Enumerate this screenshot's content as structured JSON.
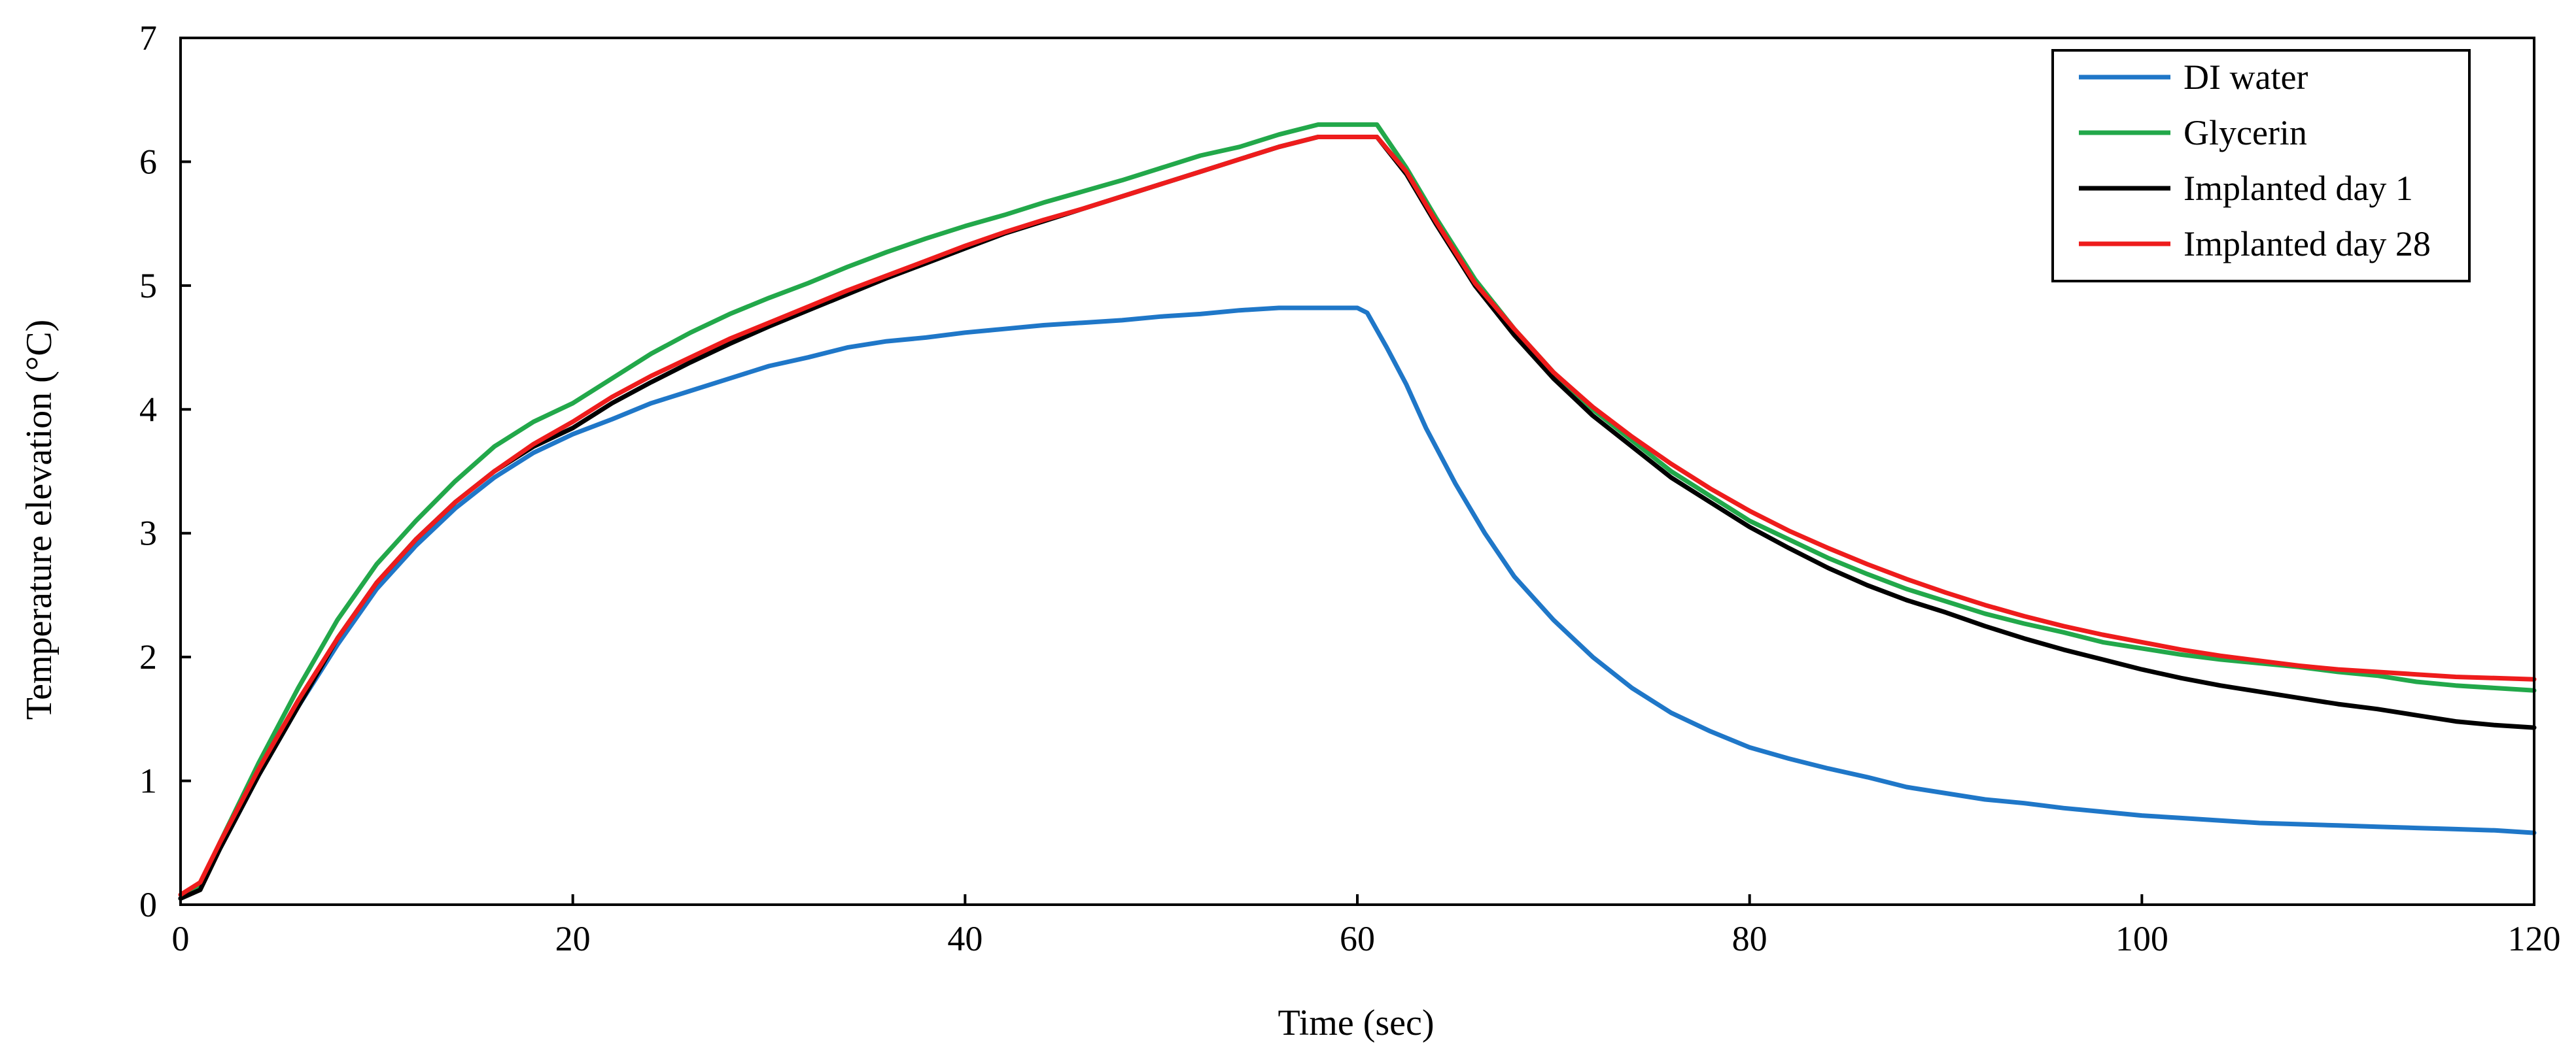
{
  "chart_data": {
    "type": "line",
    "title": "",
    "xlabel": "Time (sec)",
    "ylabel": "Temperature elevation (°C)",
    "xlim": [
      0,
      120
    ],
    "ylim": [
      0,
      7
    ],
    "xticks": [
      0,
      20,
      40,
      60,
      80,
      100,
      120
    ],
    "yticks": [
      0,
      1,
      2,
      3,
      4,
      5,
      6,
      7
    ],
    "grid": false,
    "legend_position": "top-right",
    "series": [
      {
        "name": "DI water",
        "color": "#1f77c8",
        "x": [
          0,
          1,
          2,
          4,
          6,
          8,
          10,
          12,
          14,
          16,
          18,
          20,
          22,
          24,
          26,
          28,
          30,
          32,
          34,
          36,
          38,
          40,
          42,
          44,
          46,
          48,
          50,
          52,
          54,
          56,
          58,
          60,
          60.5,
          61.5,
          62.5,
          63.5,
          65,
          66.5,
          68,
          70,
          72,
          74,
          76,
          78,
          80,
          82,
          84,
          86,
          88,
          90,
          92,
          94,
          96,
          98,
          100,
          102,
          104,
          106,
          108,
          110,
          112,
          114,
          116,
          118,
          120
        ],
        "y": [
          0.05,
          0.15,
          0.45,
          1.05,
          1.6,
          2.1,
          2.55,
          2.9,
          3.2,
          3.45,
          3.65,
          3.8,
          3.92,
          4.05,
          4.15,
          4.25,
          4.35,
          4.42,
          4.5,
          4.55,
          4.58,
          4.62,
          4.65,
          4.68,
          4.7,
          4.72,
          4.75,
          4.77,
          4.8,
          4.82,
          4.82,
          4.82,
          4.78,
          4.5,
          4.2,
          3.85,
          3.4,
          3.0,
          2.65,
          2.3,
          2.0,
          1.75,
          1.55,
          1.4,
          1.27,
          1.18,
          1.1,
          1.03,
          0.95,
          0.9,
          0.85,
          0.82,
          0.78,
          0.75,
          0.72,
          0.7,
          0.68,
          0.66,
          0.65,
          0.64,
          0.63,
          0.62,
          0.61,
          0.6,
          0.58
        ]
      },
      {
        "name": "Glycerin",
        "color": "#22a84a",
        "x": [
          0,
          1,
          2,
          4,
          6,
          8,
          10,
          12,
          14,
          16,
          18,
          20,
          22,
          24,
          26,
          28,
          30,
          32,
          34,
          36,
          38,
          40,
          42,
          44,
          46,
          48,
          50,
          52,
          54,
          56,
          58,
          60,
          61,
          62.5,
          64,
          66,
          68,
          70,
          72,
          74,
          76,
          78,
          80,
          82,
          84,
          86,
          88,
          90,
          92,
          94,
          96,
          98,
          100,
          102,
          104,
          106,
          108,
          110,
          112,
          114,
          116,
          118,
          120
        ],
        "y": [
          0.05,
          0.15,
          0.5,
          1.15,
          1.75,
          2.3,
          2.75,
          3.1,
          3.42,
          3.7,
          3.9,
          4.05,
          4.25,
          4.45,
          4.62,
          4.77,
          4.9,
          5.02,
          5.15,
          5.27,
          5.38,
          5.48,
          5.57,
          5.67,
          5.76,
          5.85,
          5.95,
          6.05,
          6.12,
          6.22,
          6.3,
          6.3,
          6.3,
          5.95,
          5.55,
          5.05,
          4.65,
          4.3,
          4.0,
          3.75,
          3.5,
          3.3,
          3.1,
          2.95,
          2.8,
          2.67,
          2.55,
          2.45,
          2.35,
          2.27,
          2.2,
          2.12,
          2.07,
          2.02,
          1.98,
          1.95,
          1.92,
          1.88,
          1.85,
          1.8,
          1.77,
          1.75,
          1.73
        ]
      },
      {
        "name": "Implanted day 1",
        "color": "#000000",
        "x": [
          0,
          1,
          2,
          4,
          6,
          8,
          10,
          12,
          14,
          16,
          18,
          20,
          22,
          24,
          26,
          28,
          30,
          32,
          34,
          36,
          38,
          40,
          42,
          44,
          46,
          48,
          50,
          52,
          54,
          56,
          58,
          60,
          61,
          62.5,
          64,
          66,
          68,
          70,
          72,
          74,
          76,
          78,
          80,
          82,
          84,
          86,
          88,
          90,
          92,
          94,
          96,
          98,
          100,
          102,
          104,
          106,
          108,
          110,
          112,
          114,
          116,
          118,
          120
        ],
        "y": [
          0.05,
          0.12,
          0.45,
          1.05,
          1.6,
          2.15,
          2.6,
          2.95,
          3.25,
          3.5,
          3.7,
          3.85,
          4.05,
          4.22,
          4.38,
          4.53,
          4.67,
          4.8,
          4.93,
          5.06,
          5.18,
          5.3,
          5.42,
          5.52,
          5.62,
          5.72,
          5.82,
          5.92,
          6.02,
          6.12,
          6.2,
          6.2,
          6.2,
          5.9,
          5.5,
          5.0,
          4.6,
          4.25,
          3.95,
          3.7,
          3.45,
          3.25,
          3.05,
          2.88,
          2.72,
          2.58,
          2.46,
          2.36,
          2.25,
          2.15,
          2.06,
          1.98,
          1.9,
          1.83,
          1.77,
          1.72,
          1.67,
          1.62,
          1.58,
          1.53,
          1.48,
          1.45,
          1.43
        ]
      },
      {
        "name": "Implanted day 28",
        "color": "#ee1c1c",
        "x": [
          0,
          1,
          2,
          4,
          6,
          8,
          10,
          12,
          14,
          16,
          18,
          20,
          22,
          24,
          26,
          28,
          30,
          32,
          34,
          36,
          38,
          40,
          42,
          44,
          46,
          48,
          50,
          52,
          54,
          56,
          58,
          60,
          61,
          62.5,
          64,
          66,
          68,
          70,
          72,
          74,
          76,
          78,
          80,
          82,
          84,
          86,
          88,
          90,
          92,
          94,
          96,
          98,
          100,
          102,
          104,
          106,
          108,
          110,
          112,
          114,
          116,
          118,
          120
        ],
        "y": [
          0.08,
          0.18,
          0.5,
          1.1,
          1.65,
          2.15,
          2.6,
          2.95,
          3.25,
          3.5,
          3.72,
          3.9,
          4.1,
          4.27,
          4.42,
          4.57,
          4.7,
          4.83,
          4.96,
          5.08,
          5.2,
          5.32,
          5.43,
          5.53,
          5.62,
          5.72,
          5.82,
          5.92,
          6.02,
          6.12,
          6.2,
          6.2,
          6.2,
          5.92,
          5.52,
          5.02,
          4.65,
          4.3,
          4.02,
          3.78,
          3.56,
          3.36,
          3.18,
          3.02,
          2.88,
          2.75,
          2.63,
          2.52,
          2.42,
          2.33,
          2.25,
          2.18,
          2.12,
          2.06,
          2.01,
          1.97,
          1.93,
          1.9,
          1.88,
          1.86,
          1.84,
          1.83,
          1.82
        ]
      }
    ]
  }
}
